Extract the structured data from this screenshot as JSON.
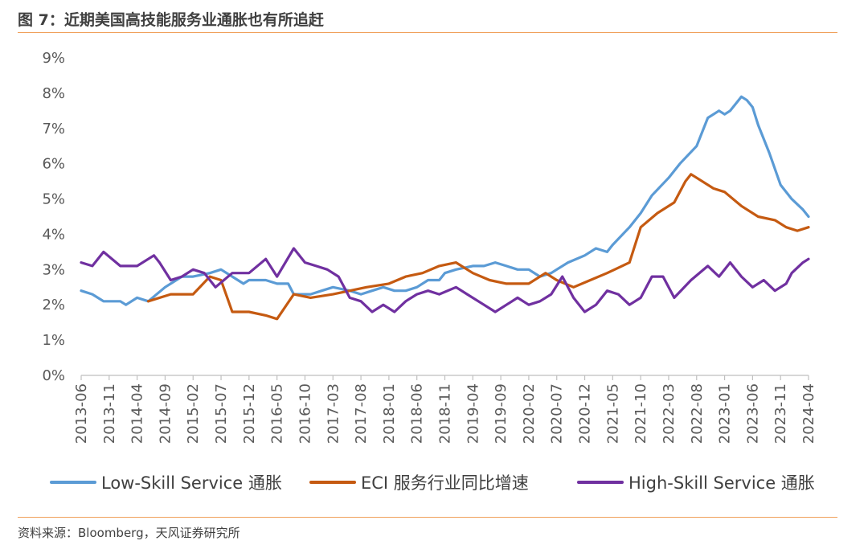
{
  "header": {
    "title": "图 7：近期美国高技能服务业通胀也有所追赶"
  },
  "footer": {
    "source": "资料来源：Bloomberg，天风证券研究所"
  },
  "chart_data": {
    "type": "line",
    "title": "图 7：近期美国高技能服务业通胀也有所追赶",
    "xlabel": "",
    "ylabel": "",
    "x_start": "2013-06",
    "x_end": "2024-04",
    "x_ticks": [
      "2013-06",
      "2013-11",
      "2014-04",
      "2014-09",
      "2015-02",
      "2015-07",
      "2015-12",
      "2016-05",
      "2016-10",
      "2017-03",
      "2017-08",
      "2018-01",
      "2018-06",
      "2018-11",
      "2019-04",
      "2019-09",
      "2020-02",
      "2020-07",
      "2020-12",
      "2021-05",
      "2021-10",
      "2022-03",
      "2022-08",
      "2023-01",
      "2023-06",
      "2023-11",
      "2024-04"
    ],
    "y_ticks": [
      "0%",
      "1%",
      "2%",
      "3%",
      "4%",
      "5%",
      "6%",
      "7%",
      "8%",
      "9%"
    ],
    "ylim": [
      0,
      9
    ],
    "grid": false,
    "legend_position": "bottom",
    "series": [
      {
        "name": "Low-Skill Service 通胀",
        "color": "#5b9bd5",
        "points": [
          [
            "2013-06",
            2.4
          ],
          [
            "2013-08",
            2.3
          ],
          [
            "2013-10",
            2.1
          ],
          [
            "2014-01",
            2.1
          ],
          [
            "2014-02",
            2.0
          ],
          [
            "2014-04",
            2.2
          ],
          [
            "2014-06",
            2.1
          ],
          [
            "2014-09",
            2.5
          ],
          [
            "2014-12",
            2.8
          ],
          [
            "2015-02",
            2.8
          ],
          [
            "2015-05",
            2.9
          ],
          [
            "2015-07",
            3.0
          ],
          [
            "2015-09",
            2.8
          ],
          [
            "2015-11",
            2.6
          ],
          [
            "2015-12",
            2.7
          ],
          [
            "2016-03",
            2.7
          ],
          [
            "2016-05",
            2.6
          ],
          [
            "2016-07",
            2.6
          ],
          [
            "2016-08",
            2.3
          ],
          [
            "2016-11",
            2.3
          ],
          [
            "2017-01",
            2.4
          ],
          [
            "2017-03",
            2.5
          ],
          [
            "2017-06",
            2.4
          ],
          [
            "2017-08",
            2.3
          ],
          [
            "2017-10",
            2.4
          ],
          [
            "2017-12",
            2.5
          ],
          [
            "2018-02",
            2.4
          ],
          [
            "2018-04",
            2.4
          ],
          [
            "2018-06",
            2.5
          ],
          [
            "2018-08",
            2.7
          ],
          [
            "2018-10",
            2.7
          ],
          [
            "2018-11",
            2.9
          ],
          [
            "2019-01",
            3.0
          ],
          [
            "2019-04",
            3.1
          ],
          [
            "2019-06",
            3.1
          ],
          [
            "2019-08",
            3.2
          ],
          [
            "2019-10",
            3.1
          ],
          [
            "2019-12",
            3.0
          ],
          [
            "2020-02",
            3.0
          ],
          [
            "2020-04",
            2.8
          ],
          [
            "2020-06",
            2.9
          ],
          [
            "2020-07",
            3.0
          ],
          [
            "2020-09",
            3.2
          ],
          [
            "2020-12",
            3.4
          ],
          [
            "2021-02",
            3.6
          ],
          [
            "2021-04",
            3.5
          ],
          [
            "2021-05",
            3.7
          ],
          [
            "2021-08",
            4.2
          ],
          [
            "2021-10",
            4.6
          ],
          [
            "2021-12",
            5.1
          ],
          [
            "2022-03",
            5.6
          ],
          [
            "2022-05",
            6.0
          ],
          [
            "2022-08",
            6.5
          ],
          [
            "2022-10",
            7.3
          ],
          [
            "2022-12",
            7.5
          ],
          [
            "2023-01",
            7.4
          ],
          [
            "2023-02",
            7.5
          ],
          [
            "2023-04",
            7.9
          ],
          [
            "2023-05",
            7.8
          ],
          [
            "2023-06",
            7.6
          ],
          [
            "2023-07",
            7.1
          ],
          [
            "2023-09",
            6.3
          ],
          [
            "2023-11",
            5.4
          ],
          [
            "2024-01",
            5.0
          ],
          [
            "2024-03",
            4.7
          ],
          [
            "2024-04",
            4.5
          ]
        ]
      },
      {
        "name": "ECI 服务行业同比增速",
        "color": "#c55a11",
        "points": [
          [
            "2014-06",
            2.1
          ],
          [
            "2014-10",
            2.3
          ],
          [
            "2015-02",
            2.3
          ],
          [
            "2015-05",
            2.8
          ],
          [
            "2015-07",
            2.7
          ],
          [
            "2015-09",
            1.8
          ],
          [
            "2015-12",
            1.8
          ],
          [
            "2016-03",
            1.7
          ],
          [
            "2016-05",
            1.6
          ],
          [
            "2016-08",
            2.3
          ],
          [
            "2016-11",
            2.2
          ],
          [
            "2017-03",
            2.3
          ],
          [
            "2017-06",
            2.4
          ],
          [
            "2017-09",
            2.5
          ],
          [
            "2018-01",
            2.6
          ],
          [
            "2018-04",
            2.8
          ],
          [
            "2018-07",
            2.9
          ],
          [
            "2018-10",
            3.1
          ],
          [
            "2019-01",
            3.2
          ],
          [
            "2019-04",
            2.9
          ],
          [
            "2019-07",
            2.7
          ],
          [
            "2019-10",
            2.6
          ],
          [
            "2020-02",
            2.6
          ],
          [
            "2020-05",
            2.9
          ],
          [
            "2020-07",
            2.7
          ],
          [
            "2020-10",
            2.5
          ],
          [
            "2021-01",
            2.7
          ],
          [
            "2021-04",
            2.9
          ],
          [
            "2021-08",
            3.2
          ],
          [
            "2021-10",
            4.2
          ],
          [
            "2022-01",
            4.6
          ],
          [
            "2022-04",
            4.9
          ],
          [
            "2022-06",
            5.5
          ],
          [
            "2022-07",
            5.7
          ],
          [
            "2022-08",
            5.6
          ],
          [
            "2022-11",
            5.3
          ],
          [
            "2023-01",
            5.2
          ],
          [
            "2023-04",
            4.8
          ],
          [
            "2023-07",
            4.5
          ],
          [
            "2023-10",
            4.4
          ],
          [
            "2023-12",
            4.2
          ],
          [
            "2024-02",
            4.1
          ],
          [
            "2024-04",
            4.2
          ]
        ]
      },
      {
        "name": "High-Skill Service 通胀",
        "color": "#7030a0",
        "points": [
          [
            "2013-06",
            3.2
          ],
          [
            "2013-08",
            3.1
          ],
          [
            "2013-10",
            3.5
          ],
          [
            "2014-01",
            3.1
          ],
          [
            "2014-04",
            3.1
          ],
          [
            "2014-07",
            3.4
          ],
          [
            "2014-08",
            3.2
          ],
          [
            "2014-10",
            2.7
          ],
          [
            "2014-12",
            2.8
          ],
          [
            "2015-02",
            3.0
          ],
          [
            "2015-04",
            2.9
          ],
          [
            "2015-06",
            2.5
          ],
          [
            "2015-09",
            2.9
          ],
          [
            "2015-12",
            2.9
          ],
          [
            "2016-03",
            3.3
          ],
          [
            "2016-05",
            2.8
          ],
          [
            "2016-08",
            3.6
          ],
          [
            "2016-10",
            3.2
          ],
          [
            "2016-12",
            3.1
          ],
          [
            "2017-02",
            3.0
          ],
          [
            "2017-04",
            2.8
          ],
          [
            "2017-06",
            2.2
          ],
          [
            "2017-08",
            2.1
          ],
          [
            "2017-10",
            1.8
          ],
          [
            "2017-12",
            2.0
          ],
          [
            "2018-02",
            1.8
          ],
          [
            "2018-04",
            2.1
          ],
          [
            "2018-06",
            2.3
          ],
          [
            "2018-08",
            2.4
          ],
          [
            "2018-10",
            2.3
          ],
          [
            "2019-01",
            2.5
          ],
          [
            "2019-03",
            2.3
          ],
          [
            "2019-06",
            2.0
          ],
          [
            "2019-08",
            1.8
          ],
          [
            "2019-10",
            2.0
          ],
          [
            "2019-12",
            2.2
          ],
          [
            "2020-02",
            2.0
          ],
          [
            "2020-04",
            2.1
          ],
          [
            "2020-06",
            2.3
          ],
          [
            "2020-08",
            2.8
          ],
          [
            "2020-10",
            2.2
          ],
          [
            "2020-12",
            1.8
          ],
          [
            "2021-02",
            2.0
          ],
          [
            "2021-04",
            2.4
          ],
          [
            "2021-06",
            2.3
          ],
          [
            "2021-08",
            2.0
          ],
          [
            "2021-10",
            2.2
          ],
          [
            "2021-12",
            2.8
          ],
          [
            "2022-02",
            2.8
          ],
          [
            "2022-04",
            2.2
          ],
          [
            "2022-07",
            2.7
          ],
          [
            "2022-10",
            3.1
          ],
          [
            "2022-12",
            2.8
          ],
          [
            "2023-02",
            3.2
          ],
          [
            "2023-04",
            2.8
          ],
          [
            "2023-06",
            2.5
          ],
          [
            "2023-08",
            2.7
          ],
          [
            "2023-10",
            2.4
          ],
          [
            "2023-12",
            2.6
          ],
          [
            "2024-01",
            2.9
          ],
          [
            "2024-03",
            3.2
          ],
          [
            "2024-04",
            3.3
          ]
        ]
      }
    ]
  }
}
